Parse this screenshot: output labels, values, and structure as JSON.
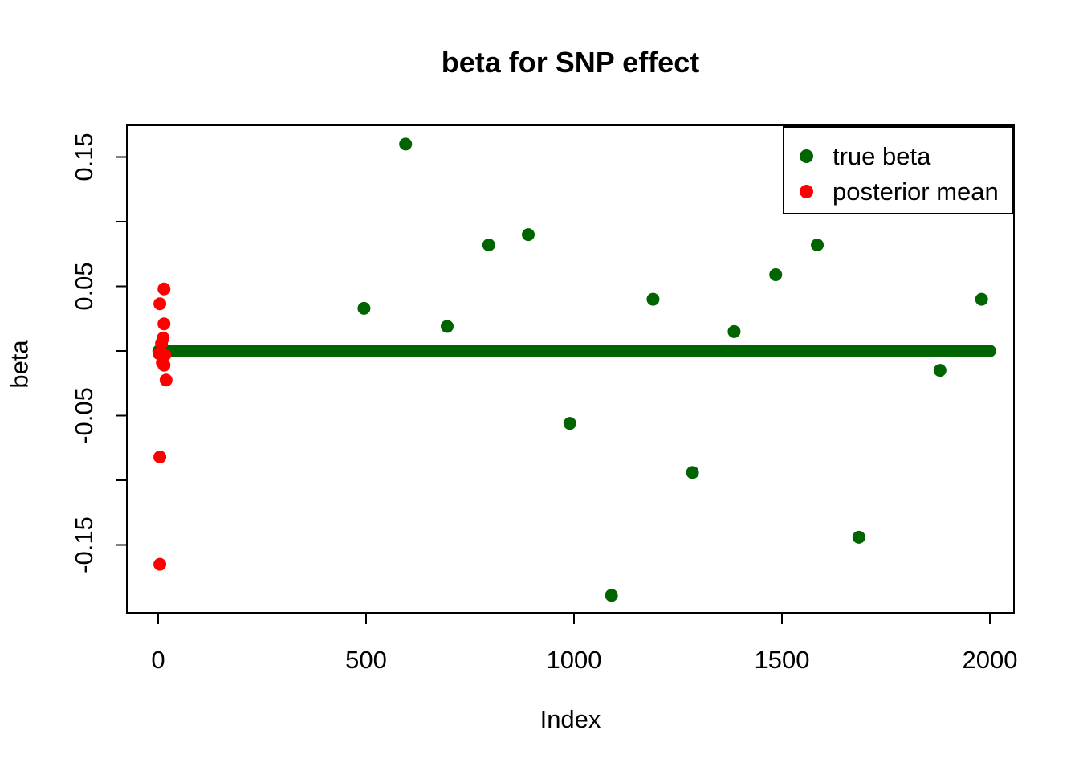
{
  "title": "beta for SNP effect",
  "axes": {
    "xlabel": "Index",
    "ylabel": "beta"
  },
  "legend": {
    "position": "top-right",
    "items": [
      {
        "label": "true beta",
        "color": "#006400"
      },
      {
        "label": "posterior mean",
        "color": "#FF0000"
      }
    ]
  },
  "colors": {
    "true_beta": "#006400",
    "posterior_mean": "#FF0000",
    "axis": "#000000",
    "background": "#FFFFFF"
  },
  "chart_data": {
    "type": "scatter",
    "title": "beta for SNP effect",
    "xlabel": "Index",
    "ylabel": "beta",
    "xlim": [
      -75,
      2058
    ],
    "ylim": [
      -0.2025,
      0.1745
    ],
    "grid": false,
    "legend_position": "top-right",
    "x_ticks": [
      {
        "value": 0,
        "label": "0"
      },
      {
        "value": 500,
        "label": "500"
      },
      {
        "value": 1000,
        "label": "1000"
      },
      {
        "value": 1500,
        "label": "1500"
      },
      {
        "value": 2000,
        "label": "2000"
      }
    ],
    "y_ticks": [
      {
        "value": -0.15,
        "label": "-0.15"
      },
      {
        "value": -0.1,
        "label": ""
      },
      {
        "value": -0.05,
        "label": "-0.05"
      },
      {
        "value": 0.0,
        "label": ""
      },
      {
        "value": 0.05,
        "label": "0.05"
      },
      {
        "value": 0.1,
        "label": ""
      },
      {
        "value": 0.15,
        "label": "0.15"
      }
    ],
    "series": [
      {
        "name": "true beta",
        "color": "#006400",
        "marker": "circle",
        "zero_run": {
          "x_start": 1,
          "x_end": 2000,
          "y": 0,
          "note": "~2000 overlapping points at beta=0 forming a thick horizontal bar"
        },
        "points": [
          [
            495,
            0.033
          ],
          [
            595,
            0.16
          ],
          [
            695,
            0.019
          ],
          [
            795,
            0.082
          ],
          [
            890,
            0.09
          ],
          [
            990,
            -0.056
          ],
          [
            1090,
            -0.189
          ],
          [
            1190,
            0.04
          ],
          [
            1285,
            -0.094
          ],
          [
            1385,
            0.015
          ],
          [
            1485,
            0.059
          ],
          [
            1585,
            0.082
          ],
          [
            1685,
            -0.144
          ],
          [
            1880,
            -0.015
          ],
          [
            1980,
            0.04
          ]
        ]
      },
      {
        "name": "posterior mean",
        "color": "#FF0000",
        "marker": "circle",
        "points": [
          [
            14,
            0.048
          ],
          [
            4,
            0.0365
          ],
          [
            14,
            0.021
          ],
          [
            12,
            0.01
          ],
          [
            8,
            0.006
          ],
          [
            2,
            -0.002
          ],
          [
            16,
            -0.003
          ],
          [
            10,
            -0.009
          ],
          [
            14,
            -0.011
          ],
          [
            19,
            -0.0225
          ],
          [
            4,
            -0.082
          ],
          [
            4,
            -0.165
          ]
        ]
      }
    ]
  }
}
